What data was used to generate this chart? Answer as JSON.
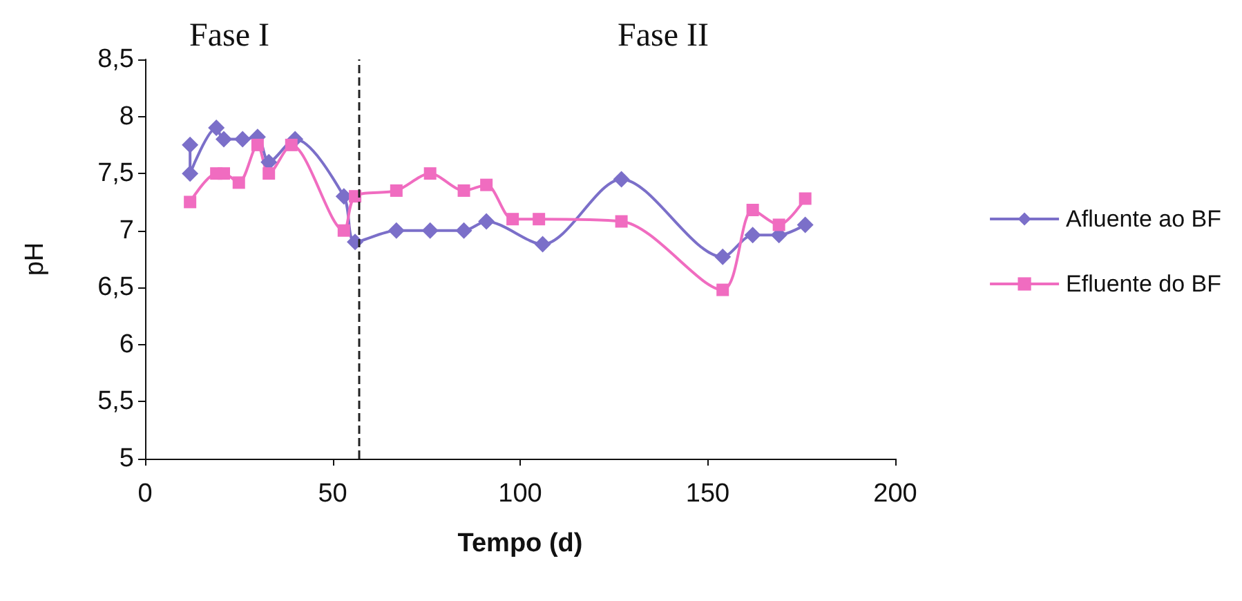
{
  "chart_data": {
    "type": "line",
    "xlabel": "Tempo (d)",
    "ylabel": "pH",
    "annotations": [
      "Fase I",
      "Fase II"
    ],
    "xlim": [
      0,
      200
    ],
    "xticks": [
      0,
      50,
      100,
      150,
      200
    ],
    "ylim": [
      5,
      8.5
    ],
    "yticks": [
      5,
      {
        "value": 5.5,
        "label": "5,5"
      },
      6,
      {
        "value": 6.5,
        "label": "6,5"
      },
      7,
      {
        "value": 7.5,
        "label": "7,5"
      },
      8,
      {
        "value": 8.5,
        "label": "8,5"
      }
    ],
    "grid": false,
    "legend": "right",
    "line_style": "solid",
    "ref_lines": [
      {
        "axis": "x",
        "value": 57,
        "line_style": "dashed",
        "color": "#222222"
      }
    ],
    "series": [
      {
        "name": "Afluente ao BF",
        "color": "#7b6fc9",
        "marker": "diamond",
        "x": [
          12,
          12,
          19,
          21,
          26,
          30,
          33,
          40,
          53,
          56,
          67,
          76,
          85,
          91,
          106,
          127,
          154,
          162,
          169,
          176
        ],
        "values": [
          7.75,
          7.5,
          7.9,
          7.8,
          7.8,
          7.82,
          7.6,
          7.8,
          7.3,
          6.9,
          7,
          7,
          7,
          7.08,
          6.88,
          7.45,
          6.77,
          6.96,
          6.96,
          7.05
        ]
      },
      {
        "name": "Efluente do BF",
        "color": "#f06cc0",
        "marker": "square",
        "x": [
          12,
          19,
          21,
          25,
          30,
          33,
          39,
          53,
          56,
          67,
          76,
          85,
          91,
          98,
          105,
          127,
          154,
          162,
          169,
          176
        ],
        "values": [
          7.25,
          7.5,
          7.5,
          7.42,
          7.75,
          7.5,
          7.75,
          7,
          7.3,
          7.35,
          7.5,
          7.35,
          7.4,
          7.1,
          7.1,
          7.08,
          6.48,
          7.18,
          7.05,
          7.28
        ]
      }
    ]
  }
}
